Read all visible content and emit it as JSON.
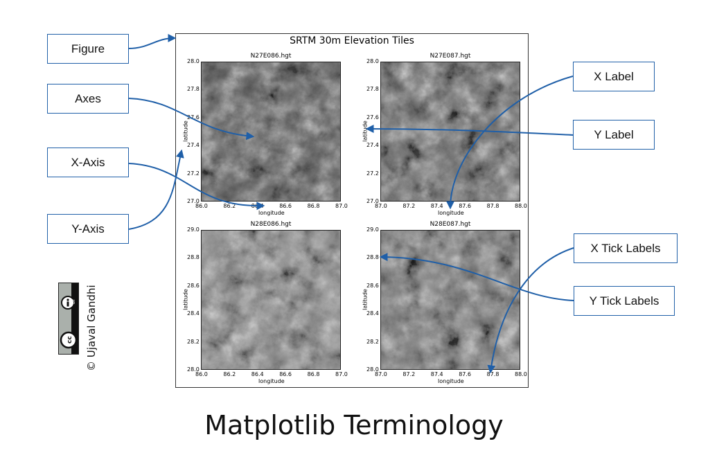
{
  "figure": {
    "title": "SRTM 30m Elevation Tiles",
    "panels": [
      {
        "title": "N27E086.hgt",
        "xlabel": "longitude",
        "ylabel": "latitude",
        "xticks": [
          "86.0",
          "86.2",
          "86.4",
          "86.6",
          "86.8",
          "87.0"
        ],
        "yticks": [
          "28.0",
          "27.8",
          "27.6",
          "27.4",
          "27.2",
          "27.0"
        ]
      },
      {
        "title": "N27E087.hgt",
        "xlabel": "longitude",
        "ylabel": "latitude",
        "xticks": [
          "87.0",
          "87.2",
          "87.4",
          "87.6",
          "87.8",
          "88.0"
        ],
        "yticks": [
          "28.0",
          "27.8",
          "27.6",
          "27.4",
          "27.2",
          "27.0"
        ]
      },
      {
        "title": "N28E086.hgt",
        "xlabel": "longitude",
        "ylabel": "latitude",
        "xticks": [
          "86.0",
          "86.2",
          "86.4",
          "86.6",
          "86.8",
          "87.0"
        ],
        "yticks": [
          "29.0",
          "28.8",
          "28.6",
          "28.4",
          "28.2",
          "28.0"
        ]
      },
      {
        "title": "N28E087.hgt",
        "xlabel": "longitude",
        "ylabel": "latitude",
        "xticks": [
          "87.0",
          "87.2",
          "87.4",
          "87.6",
          "87.8",
          "88.0"
        ],
        "yticks": [
          "29.0",
          "28.8",
          "28.6",
          "28.4",
          "28.2",
          "28.0"
        ]
      }
    ]
  },
  "callouts": {
    "figure": "Figure",
    "axes": "Axes",
    "x_axis": "X-Axis",
    "y_axis": "Y-Axis",
    "x_label": "X Label",
    "y_label": "Y Label",
    "x_tick_labels": "X Tick Labels",
    "y_tick_labels": "Y Tick Labels"
  },
  "main_title": "Matplotlib Terminology",
  "credit": "© Ujaval Gandhi",
  "license": {
    "cc": "cc",
    "by": "BY"
  },
  "colors": {
    "arrow": "#1f5fa8",
    "border": "#1f5fa8"
  }
}
